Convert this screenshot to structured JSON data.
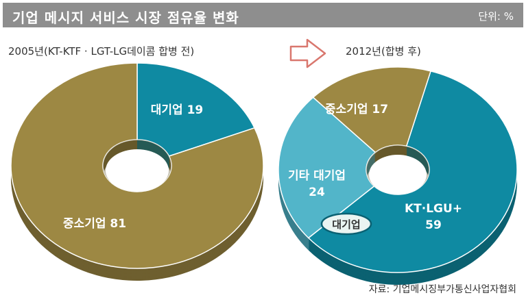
{
  "header": {
    "title": "기업 메시지 서비스 시장 점유율 변화",
    "unit": "단위: %"
  },
  "source": "자료: 기업메시징부가통신사업자협회",
  "badge_label": "대기업",
  "colors": {
    "olive": "#9d8843",
    "olive_dark": "#6f5e26",
    "teal": "#0f8aa2",
    "teal_dark": "#0a6173",
    "light_teal": "#52b5c9",
    "light_teal_dark": "#3b8d9e",
    "arrow": "#d9776e"
  },
  "chart_data": [
    {
      "type": "pie",
      "subtitle": "2005년(KT-KTF · LGT-LG데이콤 합병 전)",
      "slices": [
        {
          "label": "대기업 19",
          "value": 19,
          "color": "#0f8aa2"
        },
        {
          "label": "중소기업 81",
          "value": 81,
          "color": "#9d8843"
        }
      ]
    },
    {
      "type": "pie",
      "subtitle": "2012년(합병 후)",
      "slices": [
        {
          "label": "KT·LGU+ 59",
          "value": 59,
          "color": "#0f8aa2"
        },
        {
          "label": "기타 대기업 24",
          "value": 24,
          "color": "#52b5c9"
        },
        {
          "label": "중소기업 17",
          "value": 17,
          "color": "#9d8843"
        }
      ]
    }
  ]
}
